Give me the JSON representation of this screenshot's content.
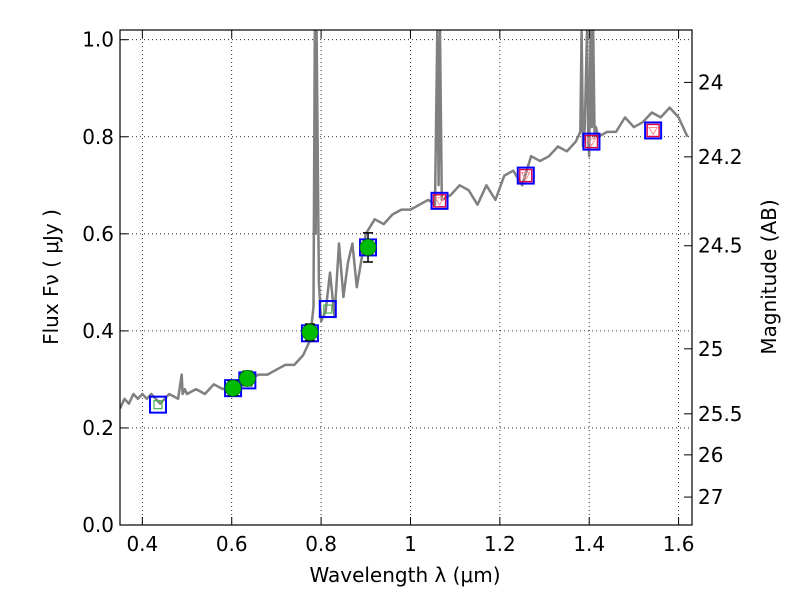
{
  "chart_data": {
    "type": "line",
    "xlabel": "Wavelength  λ (μm)",
    "ylabel": "Flux  Fν  ( μJy )",
    "ylabel_right": "Magnitude (AB)",
    "xlim": [
      0.35,
      1.63
    ],
    "ylim": [
      0.0,
      1.02
    ],
    "grid": true,
    "x_ticks": [
      0.4,
      0.6,
      0.8,
      1.0,
      1.2,
      1.4,
      1.6
    ],
    "x_tick_labels": [
      "0.4",
      "0.6",
      "0.8",
      "1",
      "1.2",
      "1.4",
      "1.6"
    ],
    "y_ticks": [
      0.0,
      0.2,
      0.4,
      0.6,
      0.8,
      1.0
    ],
    "y_tick_labels": [
      "0.0",
      "0.2",
      "0.4",
      "0.6",
      "0.8",
      "1.0"
    ],
    "right_ticks": [
      {
        "label": "24",
        "mag": 24.0
      },
      {
        "label": "24.2",
        "mag": 24.2
      },
      {
        "label": "24.5",
        "mag": 24.5
      },
      {
        "label": "25",
        "mag": 25.0
      },
      {
        "label": "25.5",
        "mag": 25.5
      },
      {
        "label": "26",
        "mag": 26.0
      },
      {
        "label": "27",
        "mag": 27.0
      }
    ],
    "model_spectrum": {
      "color": "#808080",
      "x": [
        0.35,
        0.36,
        0.37,
        0.38,
        0.39,
        0.4,
        0.41,
        0.42,
        0.44,
        0.46,
        0.48,
        0.488,
        0.49,
        0.495,
        0.5,
        0.52,
        0.54,
        0.56,
        0.58,
        0.6,
        0.62,
        0.64,
        0.66,
        0.68,
        0.7,
        0.72,
        0.74,
        0.76,
        0.775,
        0.783,
        0.786,
        0.788,
        0.79,
        0.795,
        0.8,
        0.81,
        0.82,
        0.83,
        0.84,
        0.85,
        0.86,
        0.87,
        0.88,
        0.9,
        0.92,
        0.94,
        0.96,
        0.98,
        1.0,
        1.02,
        1.04,
        1.055,
        1.06,
        1.063,
        1.066,
        1.07,
        1.09,
        1.11,
        1.13,
        1.15,
        1.17,
        1.19,
        1.21,
        1.23,
        1.25,
        1.27,
        1.29,
        1.31,
        1.33,
        1.35,
        1.37,
        1.38,
        1.383,
        1.386,
        1.39,
        1.395,
        1.398,
        1.4,
        1.403,
        1.406,
        1.409,
        1.412,
        1.415,
        1.42,
        1.44,
        1.46,
        1.48,
        1.5,
        1.52,
        1.54,
        1.56,
        1.58,
        1.6,
        1.62
      ],
      "y": [
        0.24,
        0.26,
        0.25,
        0.27,
        0.26,
        0.27,
        0.26,
        0.27,
        0.25,
        0.27,
        0.26,
        0.31,
        0.27,
        0.28,
        0.27,
        0.28,
        0.27,
        0.29,
        0.28,
        0.29,
        0.29,
        0.3,
        0.31,
        0.31,
        0.32,
        0.33,
        0.33,
        0.35,
        0.38,
        0.45,
        1.02,
        0.6,
        1.02,
        0.5,
        0.42,
        0.44,
        0.52,
        0.43,
        0.58,
        0.47,
        0.54,
        0.58,
        0.49,
        0.6,
        0.63,
        0.62,
        0.64,
        0.65,
        0.65,
        0.66,
        0.67,
        0.66,
        1.02,
        0.7,
        1.02,
        0.67,
        0.68,
        0.7,
        0.69,
        0.66,
        0.7,
        0.67,
        0.72,
        0.73,
        0.7,
        0.76,
        0.75,
        0.76,
        0.78,
        0.77,
        0.79,
        0.81,
        1.02,
        0.78,
        0.82,
        1.02,
        0.79,
        0.76,
        1.02,
        0.82,
        1.02,
        0.8,
        0.82,
        0.8,
        0.81,
        0.81,
        0.84,
        0.82,
        0.83,
        0.85,
        0.84,
        0.86,
        0.84,
        0.8
      ]
    },
    "model_boxes": [
      {
        "x": 0.435,
        "y": 0.248
      },
      {
        "x": 0.603,
        "y": 0.282
      },
      {
        "x": 0.635,
        "y": 0.298
      },
      {
        "x": 0.775,
        "y": 0.395
      },
      {
        "x": 0.815,
        "y": 0.445
      },
      {
        "x": 0.905,
        "y": 0.572
      },
      {
        "x": 1.065,
        "y": 0.668
      },
      {
        "x": 1.258,
        "y": 0.72
      },
      {
        "x": 1.405,
        "y": 0.79
      },
      {
        "x": 1.543,
        "y": 0.813
      }
    ],
    "model_box_color": "#0000ff",
    "photometry": [
      {
        "x": 0.603,
        "y": 0.282,
        "err": 0.015
      },
      {
        "x": 0.635,
        "y": 0.302,
        "err": 0.015
      },
      {
        "x": 0.775,
        "y": 0.397,
        "err": 0.017
      },
      {
        "x": 0.905,
        "y": 0.572,
        "err": 0.03
      }
    ],
    "photometry_color": "#00bb00",
    "upper_limits": [
      {
        "x": 1.065,
        "y": 0.668
      },
      {
        "x": 1.258,
        "y": 0.72
      },
      {
        "x": 1.405,
        "y": 0.79
      },
      {
        "x": 1.543,
        "y": 0.813
      }
    ],
    "upper_limit_color": "#dd0044"
  }
}
